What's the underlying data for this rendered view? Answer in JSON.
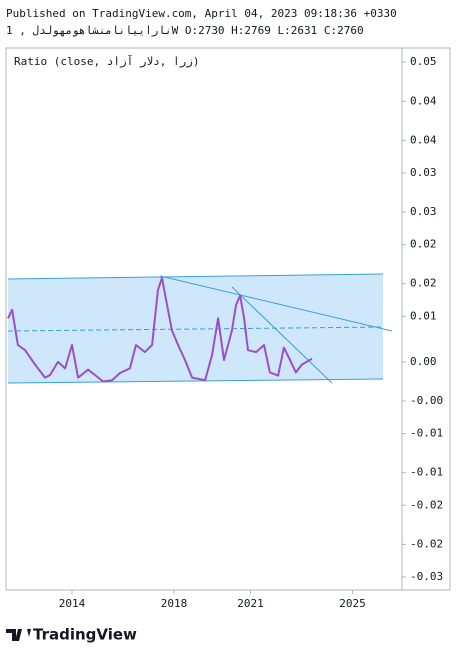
{
  "chart_data": {
    "type": "line",
    "subtitle": "Published on TradingView.com, April 04, 2023 09:18:36 +0330",
    "title": "ناراییانامنشاهومهولدل     , 1W O:2730 H:2769 L:2631 C:2760",
    "x": [
      2011.49,
      2011.65,
      2011.88,
      2012.16,
      2012.55,
      2012.94,
      2013.14,
      2013.45,
      2013.73,
      2014.0,
      2014.24,
      2014.63,
      2014.9,
      2015.22,
      2015.57,
      2015.88,
      2016.27,
      2016.51,
      2016.86,
      2017.14,
      2017.37,
      2017.53,
      2017.69,
      2017.92,
      2018.16,
      2018.43,
      2018.71,
      2019.22,
      2019.49,
      2019.73,
      2019.96,
      2020.27,
      2020.43,
      2020.59,
      2020.75,
      2020.9,
      2021.22,
      2021.53,
      2021.76,
      2022.08,
      2022.31,
      2022.55,
      2022.78,
      2023.02,
      2023.41
    ],
    "series": [
      {
        "name": "Ratio (close, زرا ,دلار آزاد)",
        "color": "#9c4fc4",
        "values": [
          0.0107,
          0.012,
          0.0066,
          0.0058,
          0.0036,
          0.0016,
          0.002,
          0.004,
          0.003,
          0.0066,
          0.0016,
          0.0028,
          0.002,
          0.001,
          0.0012,
          0.0023,
          0.003,
          0.0066,
          0.0055,
          0.0066,
          0.015,
          0.0169,
          0.0135,
          0.0088,
          0.0066,
          0.0043,
          0.0016,
          0.0012,
          0.005,
          0.0107,
          0.0043,
          0.0088,
          0.0127,
          0.0142,
          0.0107,
          0.0058,
          0.0055,
          0.0066,
          0.0024,
          0.0019,
          0.0062,
          0.0043,
          0.0024,
          0.0036,
          0.0045
        ]
      }
    ],
    "xlim": [
      2011.49,
      2026.94
    ],
    "xticks": [
      2014,
      2018,
      2021,
      2025
    ],
    "ylim": [
      -0.031,
      0.0511
    ],
    "yticks": [
      0.05,
      {
        "value": 0.044,
        "label": "0.04"
      },
      {
        "value": 0.038,
        "label": "0.04"
      },
      {
        "value": 0.033,
        "label": "0.03"
      },
      {
        "value": 0.027,
        "label": "0.03"
      },
      {
        "value": 0.022,
        "label": "0.02"
      },
      {
        "value": 0.016,
        "label": "0.02"
      },
      {
        "value": 0.011,
        "label": "0.01"
      },
      {
        "value": 0.004,
        "label": "0.00"
      },
      {
        "value": -0.002,
        "label": "-0.00"
      },
      {
        "value": -0.007,
        "label": "-0.01"
      },
      {
        "value": -0.013,
        "label": "-0.01"
      },
      {
        "value": -0.018,
        "label": "-0.02"
      },
      {
        "value": -0.024,
        "label": "-0.02"
      },
      {
        "value": -0.029,
        "label": "-0.03"
      }
    ]
  },
  "brand": "TradingView"
}
